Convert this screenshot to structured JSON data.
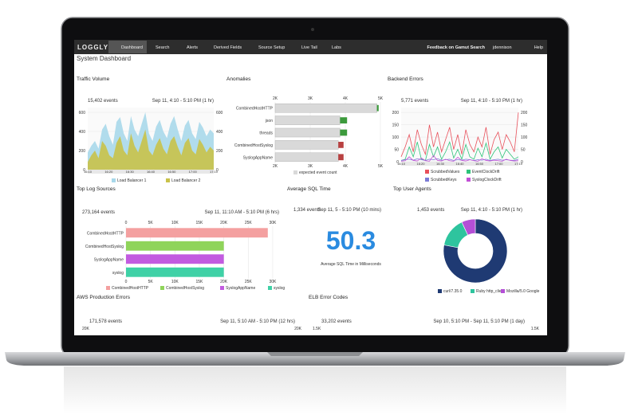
{
  "nav": {
    "logo": "LOGGLY",
    "items": [
      "Dashboard",
      "Search",
      "Alerts",
      "Derived Fields",
      "Source Setup",
      "Live Tail",
      "Labs"
    ],
    "feedback": "Feedback on Gamut Search",
    "user": "jdennison",
    "help": "Help"
  },
  "page_title": "System Dashboard",
  "widgets": [
    {
      "title": "Traffic Volume",
      "events": "15,402 events",
      "range": "Sep 11, 4:10 - 5:10 PM  (1 hr)",
      "chart": {
        "type": "area",
        "ylim": [
          0,
          650
        ],
        "yticks": [
          0,
          200,
          400,
          600
        ],
        "xticks": [
          "16:10",
          "16:20",
          "16:30",
          "16:40",
          "16:50",
          "17:00",
          "17:10"
        ],
        "series": [
          {
            "name": "Load Balancer 1",
            "color": "#a8d8ea",
            "values": [
              180,
              250,
              300,
              220,
              420,
              480,
              350,
              260,
              500,
              550,
              380,
              300,
              560,
              420,
              350,
              480,
              600,
              380,
              300,
              450,
              520,
              400,
              330,
              480,
              560,
              420,
              300,
              460,
              520,
              380,
              320,
              500,
              440,
              350,
              420,
              380
            ]
          },
          {
            "name": "Load Balancer 2",
            "color": "#c9c24a",
            "values": [
              80,
              150,
              200,
              120,
              300,
              250,
              150,
              120,
              280,
              350,
              200,
              150,
              380,
              250,
              180,
              300,
              420,
              200,
              150,
              260,
              330,
              220,
              160,
              300,
              350,
              240,
              150,
              280,
              330,
              200,
              160,
              320,
              260,
              180,
              240,
              200
            ]
          }
        ]
      }
    },
    {
      "title": "Anomalies",
      "chart": {
        "type": "hbar",
        "xlim": [
          2000,
          5000
        ],
        "xticks": [
          {
            "value": 2000,
            "label": "2K"
          },
          {
            "value": 3000,
            "label": "3K"
          },
          {
            "value": 4000,
            "label": "4K"
          },
          {
            "value": 5000,
            "label": "5K"
          }
        ],
        "categories": [
          "CombinedHostHTTP",
          "json",
          "threads",
          "CombinedHostSyslog",
          "SyslogAppName"
        ],
        "values": [
          4900,
          3850,
          3850,
          3800,
          3800
        ],
        "color": "#d9d9d9",
        "actual_values": [
          4950,
          4050,
          4050,
          3950,
          3950
        ],
        "actual_colors": [
          "#3c9a3c",
          "#3c9a3c",
          "#3c9a3c",
          "#b84040",
          "#b84040"
        ],
        "legend": "expected event count"
      }
    },
    {
      "title": "Backend Errors",
      "events": "5,771 events",
      "range": "Sep 11, 4:10 - 5:10 PM  (1 hr)",
      "chart": {
        "type": "line",
        "ylim": [
          0,
          220
        ],
        "yticks": [
          0,
          50,
          100,
          150,
          200
        ],
        "xticks": [
          "16:10",
          "16:20",
          "16:30",
          "16:40",
          "16:50",
          "17:00",
          "17:10"
        ],
        "series": [
          {
            "name": "ScrubbedValues",
            "color": "#e8505b",
            "values": [
              20,
              60,
              110,
              40,
              130,
              70,
              30,
              150,
              60,
              120,
              40,
              90,
              140,
              50,
              110,
              30,
              130,
              70,
              40,
              100,
              60,
              140,
              30,
              90,
              120,
              50,
              110,
              80,
              40,
              200
            ]
          },
          {
            "name": "EventClockDrift",
            "color": "#2ec47a",
            "values": [
              5,
              10,
              60,
              20,
              80,
              10,
              5,
              70,
              20,
              60,
              10,
              40,
              80,
              15,
              50,
              10,
              70,
              20,
              10,
              55,
              20,
              75,
              10,
              40,
              60,
              15,
              50,
              30,
              10,
              20
            ]
          },
          {
            "name": "ScrubbedKeys",
            "color": "#7b7bd6",
            "values": [
              5,
              8,
              10,
              6,
              12,
              8,
              5,
              10,
              8,
              12,
              6,
              8,
              10,
              5,
              8,
              6,
              10,
              8,
              5,
              8,
              6,
              10,
              5,
              8,
              10,
              6,
              8,
              6,
              5,
              10
            ]
          },
          {
            "name": "SyslogClockDrift",
            "color": "#c24fd6",
            "values": [
              2,
              4,
              20,
              5,
              3,
              15,
              4,
              2,
              25,
              5,
              3,
              10,
              4,
              2,
              18,
              5,
              3,
              8,
              4,
              2,
              12,
              5,
              3,
              6,
              4,
              2,
              10,
              5,
              3,
              4
            ]
          }
        ]
      }
    },
    {
      "title": "Top Log Sources",
      "events": "273,164 events",
      "range": "Sep 11, 11:10 AM - 5:10 PM  (6 hrs)",
      "chart": {
        "type": "hbar",
        "xlim": [
          0,
          30500
        ],
        "xticks": [
          0,
          {
            "value": 5000,
            "label": "5K"
          },
          {
            "value": 10000,
            "label": "10K"
          },
          {
            "value": 15000,
            "label": "15K"
          },
          {
            "value": 20000,
            "label": "20K"
          },
          {
            "value": 25000,
            "label": "25K"
          },
          {
            "value": 30000,
            "label": "30K"
          }
        ],
        "categories": [
          "CombinedHostHTTP",
          "CombinedHostSyslog",
          "SyslogAppName",
          "syslog"
        ],
        "values": [
          29000,
          20000,
          20000,
          20000
        ],
        "colors": [
          "#f4a0a0",
          "#8fd45a",
          "#c25be0",
          "#3fd1a6"
        ]
      }
    },
    {
      "title": "Average SQL Time",
      "events": "1,334 events",
      "range": "Sep 11, 5 - 5:10 PM  (10 mins)",
      "chart": {
        "type": "number",
        "value": 50.3,
        "caption": "Average SQL Time in Milliseconds"
      }
    },
    {
      "title": "Top User Agents",
      "events": "1,453 events",
      "range": "Sep 11, 4:10 - 5:10 PM  (1 hr)",
      "chart": {
        "type": "donut",
        "names": [
          "curl/7.35.0",
          "Ruby http_client",
          "Mozilla/5.0 Google"
        ],
        "values": [
          78,
          15,
          7
        ],
        "colors": [
          "#1f3a73",
          "#2ec49e",
          "#b44fd6"
        ]
      }
    },
    {
      "title": "AWS Production Errors",
      "events": "171,578 events",
      "range": "Sep 11, 5:10 AM - 5:10 PM  (12 hrs)",
      "chart": {
        "type": "axis_only",
        "axis_labels": [
          "20K",
          "20K"
        ]
      }
    },
    {
      "title": "ELB Error Codes",
      "events": "33,202 events",
      "range": "Sep 10, 5:10 PM - Sep 11, 5:10 PM  (1 day)",
      "chart": {
        "type": "axis_only",
        "axis_labels": [
          "1.5K",
          "1.5K"
        ]
      }
    }
  ]
}
